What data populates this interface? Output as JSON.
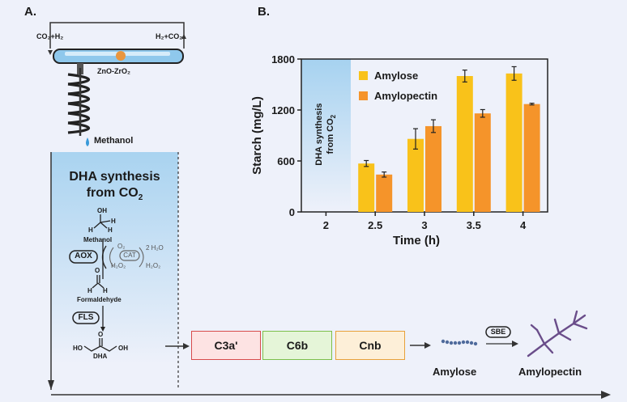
{
  "panel_a": {
    "label": "A.",
    "inlet_label": "CO₂+H₂",
    "outlet_label": "H₂+CO₂",
    "catalyst_label": "ZnO-ZrO₂",
    "product_label": "Methanol",
    "dha_title_line1": "DHA synthesis",
    "dha_title_line2": "from CO",
    "dha_title_sub": "2",
    "pathway": {
      "methanol_label": "Methanol",
      "aox_label": "AOX",
      "cat_label": "CAT",
      "o2_label": "O₂",
      "h2o2_left": "H₂O₂",
      "h2o2_right": "H₂O₂",
      "h2o_label": "2 H₂O",
      "formaldehyde_label": "Formaldehyde",
      "fls_label": "FLS",
      "dha_label": "DHA",
      "oh_label": "OH",
      "h_label": "H",
      "o_label": "O",
      "ho_label": "HO"
    }
  },
  "modules": {
    "c3a_label": "C3a'",
    "c6b_label": "C6b",
    "cnb_label": "Cnb",
    "amylose_label": "Amylose",
    "sbe_label": "SBE",
    "amylopectin_label": "Amylopectin",
    "c3a_color": "#fde3e3",
    "c6b_color": "#e5f5d8",
    "cnb_color": "#fdefd8"
  },
  "panel_b": {
    "label": "B.",
    "shaded_label_line1": "DHA synthesis",
    "shaded_label_line2": "from CO",
    "shaded_label_sub": "2"
  },
  "chart_data": {
    "type": "bar",
    "xlabel": "Time (h)",
    "ylabel": "Starch (mg/L)",
    "categories": [
      "2",
      "2.5",
      "3",
      "3.5",
      "4"
    ],
    "ylim": [
      0,
      1800
    ],
    "yticks": [
      0,
      600,
      1200,
      1800
    ],
    "legend_position": "top",
    "series": [
      {
        "name": "Amylose",
        "color": "#f9c21a",
        "values": [
          0,
          570,
          860,
          1600,
          1630
        ],
        "errors": [
          0,
          35,
          120,
          70,
          80
        ]
      },
      {
        "name": "Amylopectin",
        "color": "#f5942a",
        "values": [
          0,
          440,
          1010,
          1160,
          1270
        ],
        "errors": [
          0,
          30,
          75,
          45,
          10
        ]
      }
    ]
  }
}
